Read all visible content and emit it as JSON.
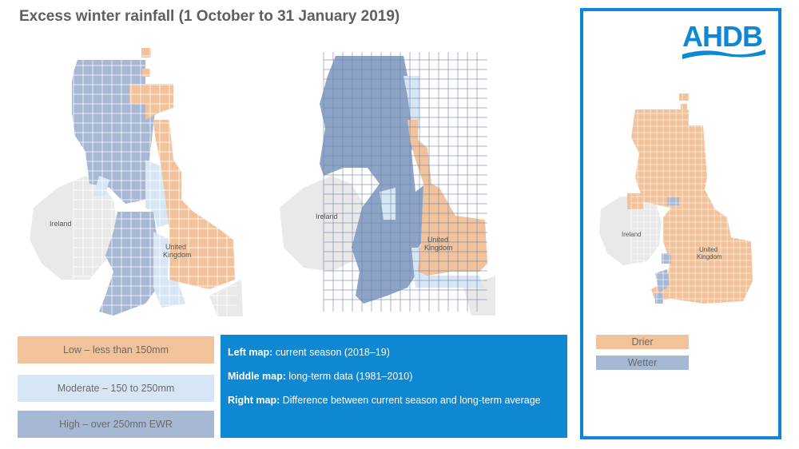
{
  "title": "Excess winter rainfall (1 October to 31 January 2019)",
  "maps": {
    "left": {
      "label_ireland": "Ireland",
      "label_uk_1": "United",
      "label_uk_2": "Kingdom"
    },
    "middle": {
      "label_ireland": "Ireland",
      "label_uk_1": "United",
      "label_uk_2": "Kingdom"
    },
    "right": {
      "label_ireland": "Ireland",
      "label_uk_1": "United",
      "label_uk_2": "Kingdom"
    }
  },
  "legend": {
    "low": "Low – less than 150mm",
    "moderate": "Moderate – 150 to 250mm",
    "high": "High – over 250mm EWR"
  },
  "info": {
    "left_bold": "Left map:",
    "left_text": " current season (2018–19)",
    "middle_bold": "Middle map:",
    "middle_text": " long-term data (1981–2010)",
    "right_bold": "Right map:",
    "right_text": " Difference between current season and long-term average"
  },
  "logo": {
    "text": "AHDB"
  },
  "key": {
    "drier": "Drier",
    "wetter": "Wetter"
  },
  "colors": {
    "low": "#f2c29a",
    "moderate": "#d6e6f5",
    "high": "#a6b8d3",
    "high_dark": "#8ea4c6",
    "accent": "#0e88d3",
    "land": "#e9e9e9"
  }
}
